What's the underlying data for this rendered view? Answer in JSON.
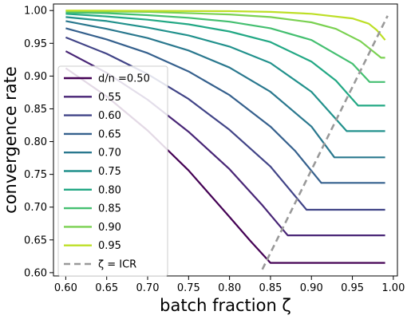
{
  "chart_data": {
    "type": "line",
    "xlabel": "batch fraction ζ",
    "ylabel": "convergence rate",
    "xlim": [
      0.585,
      1.005
    ],
    "ylim": [
      0.595,
      1.01
    ],
    "xticks": [
      "0.60",
      "0.65",
      "0.70",
      "0.75",
      "0.80",
      "0.85",
      "0.90",
      "0.95",
      "1.00"
    ],
    "yticks": [
      "0.60",
      "0.65",
      "0.70",
      "0.75",
      "0.80",
      "0.85",
      "0.90",
      "0.95",
      "1.00"
    ],
    "grid": false,
    "legend_position": "lower-left",
    "series": [
      {
        "name": "d/n =0.50",
        "color": "#440154",
        "x": [
          0.6,
          0.65,
          0.7,
          0.75,
          0.8,
          0.825,
          0.85,
          0.87,
          0.9,
          0.95,
          0.99
        ],
        "values": [
          0.912,
          0.869,
          0.817,
          0.756,
          0.685,
          0.649,
          0.615,
          0.615,
          0.615,
          0.615,
          0.615
        ]
      },
      {
        "name": "0.55",
        "color": "#482576",
        "x": [
          0.6,
          0.65,
          0.7,
          0.75,
          0.8,
          0.84,
          0.871,
          0.9,
          0.95,
          0.99
        ],
        "values": [
          0.938,
          0.905,
          0.864,
          0.815,
          0.758,
          0.703,
          0.657,
          0.657,
          0.657,
          0.657
        ]
      },
      {
        "name": "0.60",
        "color": "#414487",
        "x": [
          0.6,
          0.65,
          0.7,
          0.75,
          0.8,
          0.85,
          0.894,
          0.92,
          0.95,
          0.99
        ],
        "values": [
          0.959,
          0.934,
          0.903,
          0.865,
          0.818,
          0.762,
          0.696,
          0.696,
          0.696,
          0.696
        ]
      },
      {
        "name": "0.65",
        "color": "#35608d",
        "x": [
          0.6,
          0.65,
          0.7,
          0.75,
          0.8,
          0.85,
          0.88,
          0.912,
          0.95,
          0.99
        ],
        "values": [
          0.973,
          0.956,
          0.935,
          0.907,
          0.871,
          0.823,
          0.786,
          0.737,
          0.737,
          0.737
        ]
      },
      {
        "name": "0.70",
        "color": "#2a788e",
        "x": [
          0.6,
          0.65,
          0.7,
          0.75,
          0.8,
          0.85,
          0.9,
          0.928,
          0.95,
          0.99
        ],
        "values": [
          0.984,
          0.972,
          0.958,
          0.939,
          0.913,
          0.876,
          0.823,
          0.776,
          0.776,
          0.776
        ]
      },
      {
        "name": "0.75",
        "color": "#21918c",
        "x": [
          0.6,
          0.65,
          0.7,
          0.75,
          0.8,
          0.85,
          0.9,
          0.943,
          0.96,
          0.99
        ],
        "values": [
          0.99,
          0.984,
          0.974,
          0.962,
          0.945,
          0.92,
          0.876,
          0.816,
          0.816,
          0.816
        ]
      },
      {
        "name": "0.80",
        "color": "#22a884",
        "x": [
          0.6,
          0.65,
          0.7,
          0.75,
          0.8,
          0.85,
          0.9,
          0.93,
          0.957,
          0.97,
          0.99
        ],
        "values": [
          0.995,
          0.991,
          0.986,
          0.979,
          0.968,
          0.952,
          0.922,
          0.893,
          0.855,
          0.855,
          0.855
        ]
      },
      {
        "name": "0.85",
        "color": "#44bf70",
        "x": [
          0.6,
          0.65,
          0.7,
          0.75,
          0.8,
          0.85,
          0.9,
          0.95,
          0.971,
          0.98,
          0.99
        ],
        "values": [
          0.997,
          0.996,
          0.993,
          0.989,
          0.983,
          0.973,
          0.955,
          0.919,
          0.891,
          0.891,
          0.891
        ]
      },
      {
        "name": "0.90",
        "color": "#7ad151",
        "x": [
          0.6,
          0.7,
          0.8,
          0.85,
          0.9,
          0.93,
          0.96,
          0.974,
          0.985,
          0.99
        ],
        "values": [
          0.999,
          0.998,
          0.994,
          0.99,
          0.982,
          0.972,
          0.953,
          0.939,
          0.928,
          0.928
        ]
      },
      {
        "name": "0.95",
        "color": "#bddf26",
        "x": [
          0.6,
          0.7,
          0.8,
          0.85,
          0.9,
          0.95,
          0.97,
          0.98,
          0.99
        ],
        "values": [
          1.0,
          0.9995,
          0.999,
          0.998,
          0.995,
          0.988,
          0.98,
          0.97,
          0.955
        ]
      },
      {
        "name": "ζ = ICR",
        "color": "#999999",
        "dashed": true,
        "x": [
          0.84,
          0.993
        ],
        "values": [
          0.605,
          0.992
        ]
      }
    ]
  }
}
